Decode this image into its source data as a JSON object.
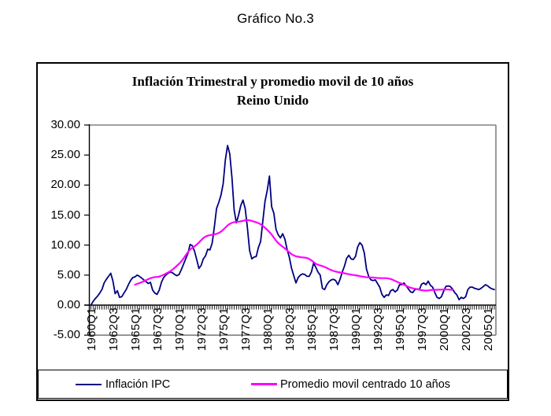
{
  "page": {
    "title": "Gráfico No.3",
    "background": "#ffffff"
  },
  "chart": {
    "title_line1": "Inflación Trimestral y promedio movil de 10 años",
    "title_line2": "Reino Unido",
    "legend": [
      {
        "label": "Inflación IPC",
        "color": "#000080"
      },
      {
        "label": "Promedio movil centrado 10 años",
        "color": "#FF00FF"
      }
    ]
  },
  "chart_data": {
    "type": "line",
    "page_caption": "Gráfico No.3",
    "title": "Inflación Trimestral y promedio movil de 10 años",
    "subtitle": "Reino Unido",
    "x_frequency": "quarterly",
    "x_range": [
      "1960Q1",
      "2005Q4"
    ],
    "x_tick_interval_quarters": 10,
    "x_tick_labels": [
      "1960Q1",
      "1962Q3",
      "1965Q1",
      "1967Q3",
      "1970Q1",
      "1972Q3",
      "1975Q1",
      "1977Q3",
      "1980Q1",
      "1982Q3",
      "1985Q1",
      "1987Q3",
      "1990Q1",
      "1992Q3",
      "1995Q1",
      "1997Q3",
      "2000Q1",
      "2002Q3",
      "2005Q1"
    ],
    "ylim": [
      -5,
      30
    ],
    "y_ticks": [
      {
        "value": 30,
        "label": "30.00"
      },
      {
        "value": 25,
        "label": "25.00"
      },
      {
        "value": 20,
        "label": "20.00"
      },
      {
        "value": 15,
        "label": "15.00"
      },
      {
        "value": 10,
        "label": "10.00"
      },
      {
        "value": 5,
        "label": "5.00"
      },
      {
        "value": 0,
        "label": "0.00"
      },
      {
        "value": -5,
        "label": "-5.00"
      }
    ],
    "grid": {
      "horizontal_lines_at": [
        30,
        0,
        -5
      ],
      "right_border": true,
      "interior_gridlines": false
    },
    "legend_position": "bottom",
    "axis_color": "#000000",
    "gridline_color": "#808080",
    "series": [
      {
        "name": "Inflación IPC",
        "color": "#000080",
        "start": "1960Q1",
        "values": [
          0.0,
          0.6,
          1.1,
          1.5,
          2.0,
          2.6,
          3.7,
          4.3,
          4.8,
          5.3,
          4.0,
          1.9,
          2.4,
          1.3,
          1.4,
          2.0,
          2.6,
          3.4,
          4.1,
          4.6,
          4.7,
          5.0,
          4.8,
          4.5,
          4.2,
          3.9,
          3.6,
          3.8,
          2.5,
          2.0,
          1.8,
          2.5,
          3.8,
          4.6,
          5.0,
          5.3,
          5.5,
          5.4,
          5.1,
          4.9,
          5.1,
          5.9,
          6.8,
          7.7,
          8.6,
          10.1,
          9.9,
          9.0,
          7.6,
          6.1,
          6.6,
          7.7,
          8.2,
          9.3,
          9.2,
          10.3,
          13.0,
          16.1,
          17.1,
          18.3,
          20.2,
          24.2,
          26.6,
          25.2,
          21.2,
          15.8,
          13.7,
          15.0,
          16.6,
          17.5,
          16.1,
          12.9,
          9.1,
          7.7,
          8.0,
          8.1,
          9.6,
          10.6,
          14.0,
          17.3,
          19.1,
          21.5,
          16.4,
          15.3,
          12.6,
          11.7,
          11.2,
          11.9,
          11.0,
          9.3,
          8.0,
          6.2,
          4.9,
          3.7,
          4.6,
          5.0,
          5.2,
          5.1,
          4.8,
          4.8,
          5.5,
          7.0,
          6.3,
          5.5,
          5.0,
          2.8,
          2.6,
          3.4,
          3.9,
          4.2,
          4.3,
          4.1,
          3.4,
          4.3,
          5.5,
          6.5,
          7.8,
          8.3,
          7.7,
          7.6,
          8.1,
          9.7,
          10.4,
          10.0,
          8.7,
          6.0,
          4.8,
          4.2,
          4.1,
          4.2,
          3.6,
          3.0,
          1.8,
          1.3,
          1.7,
          1.6,
          2.4,
          2.6,
          2.2,
          2.5,
          3.4,
          3.4,
          3.7,
          3.2,
          2.7,
          2.2,
          2.1,
          2.6,
          2.7,
          2.6,
          3.5,
          3.7,
          3.4,
          4.0,
          3.3,
          3.0,
          2.1,
          1.3,
          1.1,
          1.4,
          2.3,
          3.1,
          3.2,
          3.1,
          2.7,
          2.1,
          1.7,
          0.9,
          1.3,
          1.1,
          1.4,
          2.6,
          3.0,
          3.0,
          2.8,
          2.7,
          2.6,
          2.8,
          3.1,
          3.4,
          3.2,
          2.9,
          2.7,
          2.6
        ]
      },
      {
        "name": "Promedio movil centrado 10 años",
        "color": "#FF00FF",
        "derived_from": "Inflación IPC",
        "derivation": "centered 40-quarter (10-year) moving average",
        "window_quarters": 40,
        "coverage": [
          "1965Q1",
          "2001Q1"
        ],
        "approx_values_at": {
          "1965Q1": 3.4,
          "1970Q1": 6.9,
          "1975Q1": 12.6,
          "1977Q4": 14.2,
          "1980Q1": 12.5,
          "1985Q1": 7.5,
          "1990Q1": 5.0,
          "1995Q1": 3.7,
          "2001Q1": 2.6
        }
      }
    ]
  }
}
